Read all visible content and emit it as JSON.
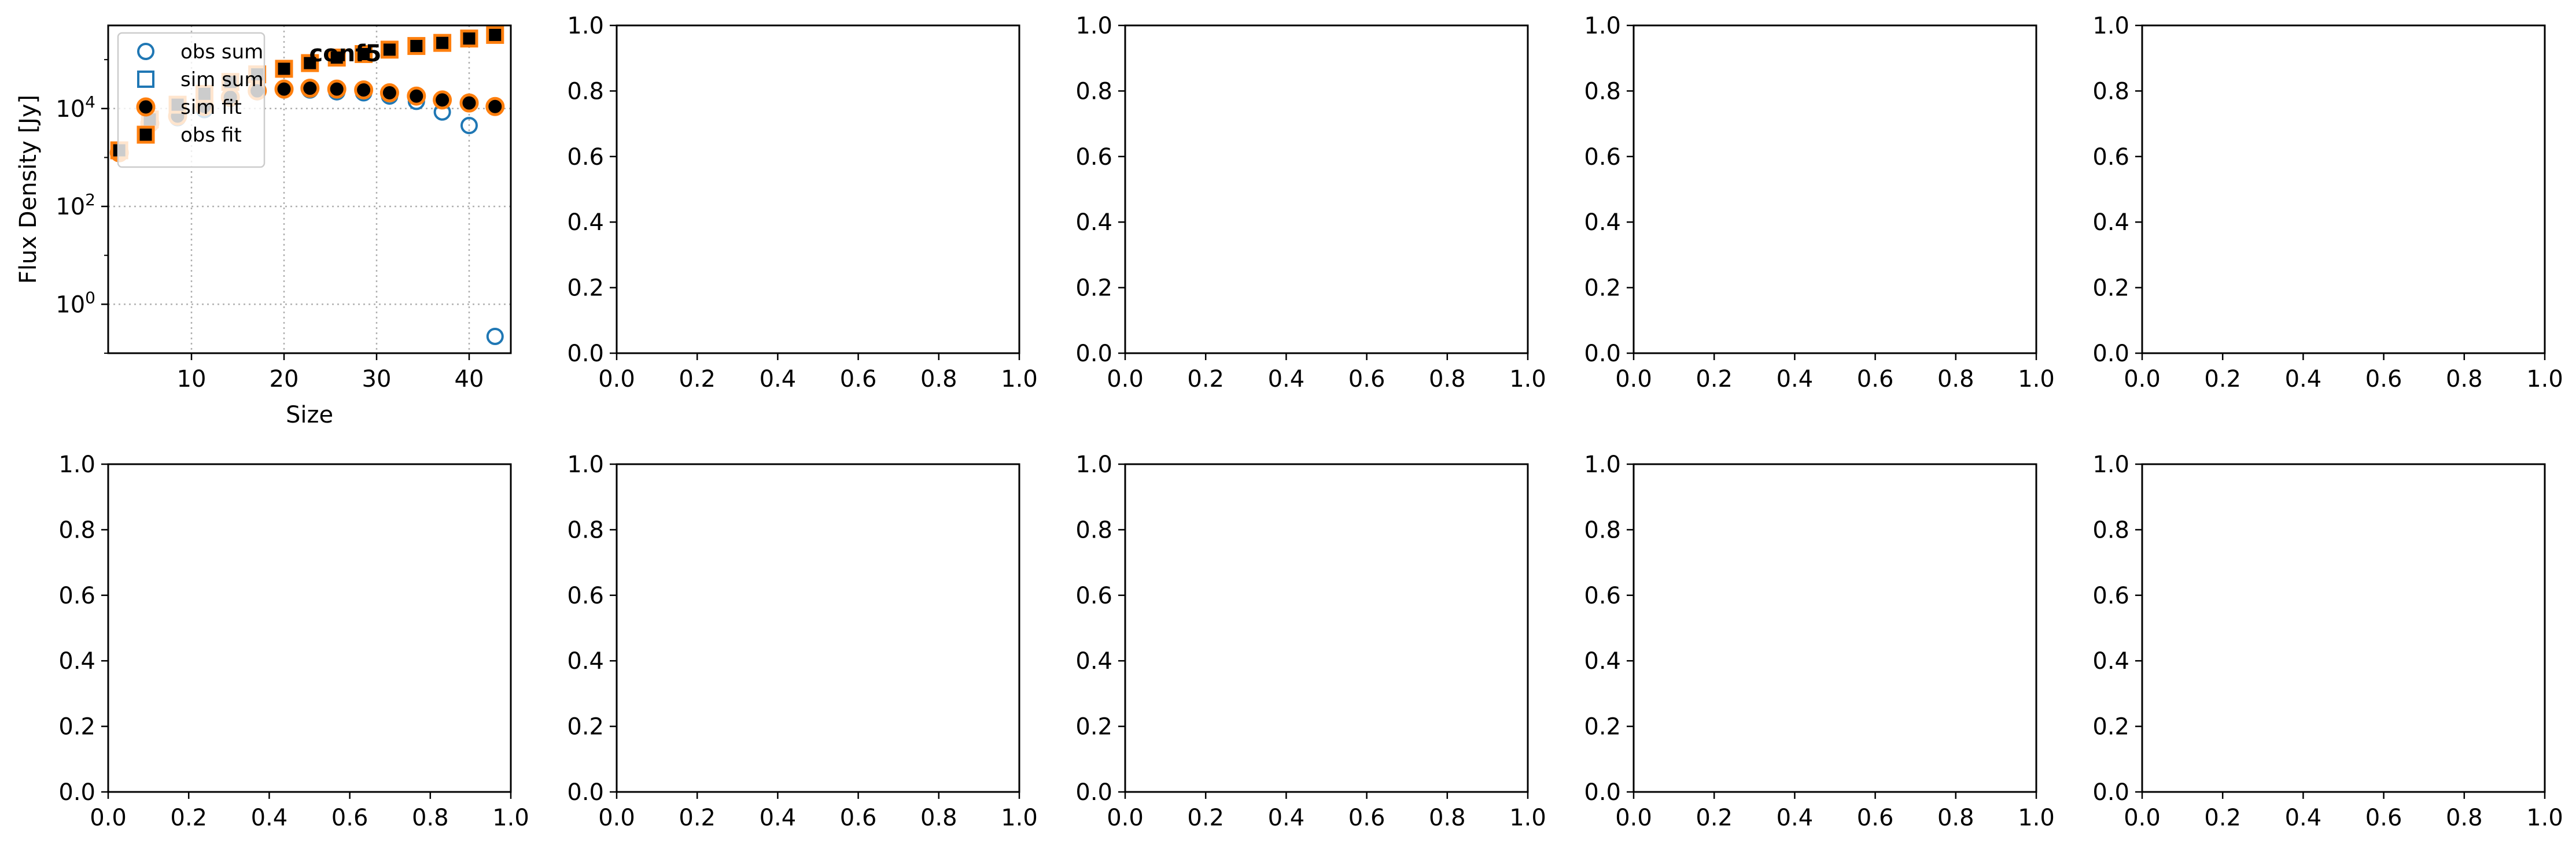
{
  "colors": {
    "blue": "#1f77b4",
    "orange": "#ff7f0e",
    "black": "#000000",
    "grid": "#b0b0b0"
  },
  "chart_data": [
    {
      "type": "scatter",
      "title": "conf5",
      "xlabel": "Size",
      "ylabel": "Flux Density [Jy]",
      "xlim": [
        1,
        44.5
      ],
      "ylim": [
        0.1,
        500000
      ],
      "yscale": "log",
      "xticks": [
        10,
        20,
        30,
        40
      ],
      "xtick_labels": [
        "10",
        "20",
        "30",
        "40"
      ],
      "yticks": [
        1,
        100,
        10000
      ],
      "ytick_labels": [
        "10^0",
        "10^2",
        "10^4"
      ],
      "grid": true,
      "legend": "upper-left",
      "series": [
        {
          "name": "obs sum",
          "marker": "circle-open",
          "x": [
            2.2,
            5.5,
            8.5,
            11.4,
            14.2,
            17.1,
            20.0,
            22.8,
            25.7,
            28.6,
            31.4,
            34.3,
            37.1,
            40.0,
            42.8
          ],
          "y": [
            1200,
            4800,
            6500,
            9500,
            16000,
            22000,
            24000,
            24000,
            22000,
            21000,
            18000,
            14000,
            8500,
            4500,
            0.22
          ]
        },
        {
          "name": "sim sum",
          "marker": "square-open",
          "x": [
            2.2,
            5.5,
            8.5,
            11.4,
            14.2,
            17.1,
            20.0,
            22.8,
            25.7,
            28.6,
            31.4,
            34.3,
            37.1,
            40.0,
            42.8
          ],
          "y": [
            1400,
            6000,
            12000,
            20000,
            35000,
            50000,
            65000,
            85000,
            110000,
            130000,
            160000,
            190000,
            220000,
            270000,
            320000
          ]
        },
        {
          "name": "sim fit",
          "marker": "circle-filled",
          "x": [
            2.2,
            5.5,
            8.5,
            11.4,
            14.2,
            17.1,
            20.0,
            22.8,
            25.7,
            28.6,
            31.4,
            34.3,
            37.1,
            40.0,
            42.8
          ],
          "y": [
            1250,
            5000,
            7000,
            11000,
            17000,
            23000,
            25000,
            26000,
            25000,
            24000,
            21000,
            18000,
            15000,
            13000,
            11000
          ]
        },
        {
          "name": "obs fit",
          "marker": "square-filled",
          "x": [
            2.2,
            5.5,
            8.5,
            11.4,
            14.2,
            17.1,
            20.0,
            22.8,
            25.7,
            28.6,
            31.4,
            34.3,
            37.1,
            40.0,
            42.8
          ],
          "y": [
            1400,
            6000,
            12000,
            20000,
            35000,
            50000,
            65000,
            85000,
            110000,
            130000,
            160000,
            190000,
            220000,
            270000,
            320000
          ]
        }
      ]
    },
    {
      "type": "scatter",
      "empty": true,
      "xlim": [
        0,
        1
      ],
      "ylim": [
        0,
        1
      ],
      "xtick_labels": [
        "0.0",
        "0.2",
        "0.4",
        "0.6",
        "0.8",
        "1.0"
      ],
      "ytick_labels": [
        "0.0",
        "0.2",
        "0.4",
        "0.6",
        "0.8",
        "1.0"
      ]
    },
    {
      "type": "scatter",
      "empty": true,
      "xlim": [
        0,
        1
      ],
      "ylim": [
        0,
        1
      ],
      "xtick_labels": [
        "0.0",
        "0.2",
        "0.4",
        "0.6",
        "0.8",
        "1.0"
      ],
      "ytick_labels": [
        "0.0",
        "0.2",
        "0.4",
        "0.6",
        "0.8",
        "1.0"
      ]
    },
    {
      "type": "scatter",
      "empty": true,
      "xlim": [
        0,
        1
      ],
      "ylim": [
        0,
        1
      ],
      "xtick_labels": [
        "0.0",
        "0.2",
        "0.4",
        "0.6",
        "0.8",
        "1.0"
      ],
      "ytick_labels": [
        "0.0",
        "0.2",
        "0.4",
        "0.6",
        "0.8",
        "1.0"
      ]
    },
    {
      "type": "scatter",
      "empty": true,
      "xlim": [
        0,
        1
      ],
      "ylim": [
        0,
        1
      ],
      "xtick_labels": [
        "0.0",
        "0.2",
        "0.4",
        "0.6",
        "0.8",
        "1.0"
      ],
      "ytick_labels": [
        "0.0",
        "0.2",
        "0.4",
        "0.6",
        "0.8",
        "1.0"
      ]
    },
    {
      "type": "scatter",
      "empty": true,
      "xlim": [
        0,
        1
      ],
      "ylim": [
        0,
        1
      ],
      "xtick_labels": [
        "0.0",
        "0.2",
        "0.4",
        "0.6",
        "0.8",
        "1.0"
      ],
      "ytick_labels": [
        "0.0",
        "0.2",
        "0.4",
        "0.6",
        "0.8",
        "1.0"
      ]
    },
    {
      "type": "scatter",
      "empty": true,
      "xlim": [
        0,
        1
      ],
      "ylim": [
        0,
        1
      ],
      "xtick_labels": [
        "0.0",
        "0.2",
        "0.4",
        "0.6",
        "0.8",
        "1.0"
      ],
      "ytick_labels": [
        "0.0",
        "0.2",
        "0.4",
        "0.6",
        "0.8",
        "1.0"
      ]
    },
    {
      "type": "scatter",
      "empty": true,
      "xlim": [
        0,
        1
      ],
      "ylim": [
        0,
        1
      ],
      "xtick_labels": [
        "0.0",
        "0.2",
        "0.4",
        "0.6",
        "0.8",
        "1.0"
      ],
      "ytick_labels": [
        "0.0",
        "0.2",
        "0.4",
        "0.6",
        "0.8",
        "1.0"
      ]
    },
    {
      "type": "scatter",
      "empty": true,
      "xlim": [
        0,
        1
      ],
      "ylim": [
        0,
        1
      ],
      "xtick_labels": [
        "0.0",
        "0.2",
        "0.4",
        "0.6",
        "0.8",
        "1.0"
      ],
      "ytick_labels": [
        "0.0",
        "0.2",
        "0.4",
        "0.6",
        "0.8",
        "1.0"
      ]
    },
    {
      "type": "scatter",
      "empty": true,
      "xlim": [
        0,
        1
      ],
      "ylim": [
        0,
        1
      ],
      "xtick_labels": [
        "0.0",
        "0.2",
        "0.4",
        "0.6",
        "0.8",
        "1.0"
      ],
      "ytick_labels": [
        "0.0",
        "0.2",
        "0.4",
        "0.6",
        "0.8",
        "1.0"
      ]
    }
  ]
}
